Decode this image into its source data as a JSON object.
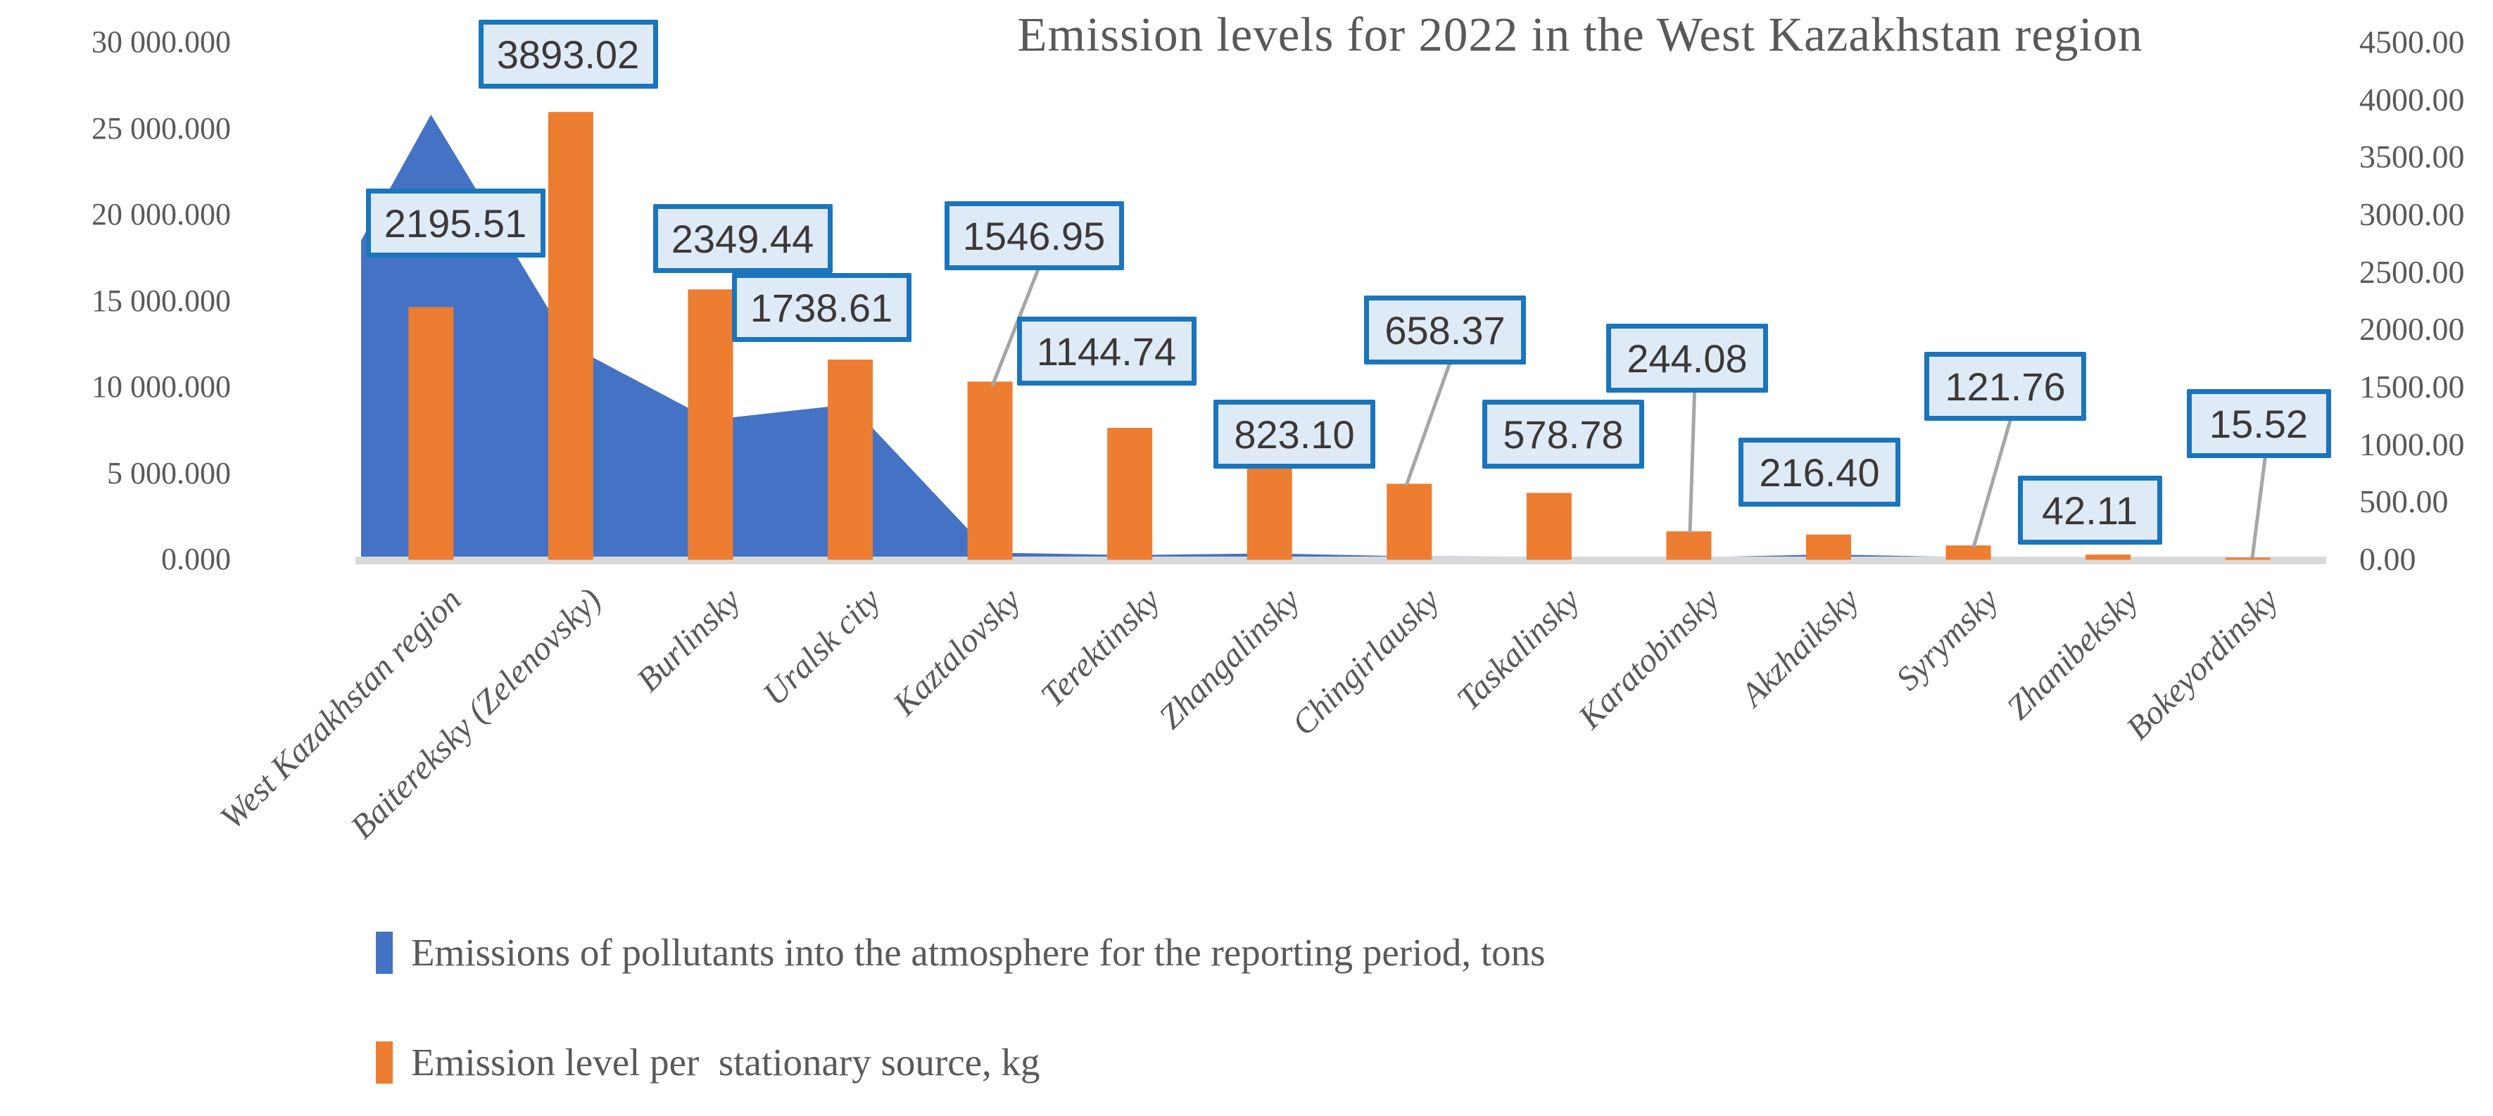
{
  "title": "Emission levels for 2022 in the West Kazakhstan region",
  "colors": {
    "area_blue": "#4472C4",
    "bar_orange": "#ED7D31",
    "callout_fill": "#DEEBF7",
    "callout_border": "#1B75BC",
    "leader_gray": "#A6A6A6",
    "baseline_gray": "#D9D9D9",
    "text_gray": "#595959"
  },
  "chart_data": {
    "type": "combo",
    "subtype": "area+bar, dual axis",
    "grid": false,
    "legend_position": "bottom-left",
    "categories": [
      "West Kazakhstan region",
      "Baitereksky (Zelenovsky)",
      "Burlinsky",
      "Uralsk city",
      "Kaztalovsky",
      "Terektinsky",
      "Zhangalinsky",
      "Chingirlausky",
      "Taskalinsky",
      "Karatobinsky",
      "Akzhaiksky",
      "Syrymsky",
      "Zhanibeksky",
      "Bokeyordinsky"
    ],
    "series": [
      {
        "name": "Emissions of pollutants into the atmosphere for the reporting period, tons",
        "type": "area",
        "axis": "left",
        "values": [
          25800,
          12400,
          8100,
          9000,
          400,
          250,
          350,
          180,
          160,
          110,
          290,
          130,
          70,
          40
        ],
        "note": "values in tons, estimated from area height against left axis"
      },
      {
        "name": "Emission level per  stationary source, kg",
        "type": "bar",
        "axis": "right",
        "values": [
          2195.51,
          3893.02,
          2349.44,
          1738.61,
          1546.95,
          1144.74,
          823.1,
          658.37,
          578.78,
          244.08,
          216.4,
          121.76,
          42.11,
          15.52
        ],
        "data_labels": [
          "2195.51",
          "3893.02",
          "2349.44",
          "1738.61",
          "1546.95",
          "1144.74",
          "823.10",
          "658.37",
          "578.78",
          "244.08",
          "216.40",
          "121.76",
          "42.11",
          "15.52"
        ]
      }
    ],
    "left_axis": {
      "min": 0,
      "max": 30000,
      "step": 5000,
      "ticks": [
        "0.000",
        "5 000.000",
        "10 000.000",
        "15 000.000",
        "20 000.000",
        "25 000.000",
        "30 000.000"
      ]
    },
    "right_axis": {
      "min": 0,
      "max": 4500,
      "step": 500,
      "ticks": [
        "0.00",
        "500.00",
        "1000.00",
        "1500.00",
        "2000.00",
        "2500.00",
        "3000.00",
        "3500.00",
        "4000.00",
        "4500.00"
      ]
    }
  }
}
